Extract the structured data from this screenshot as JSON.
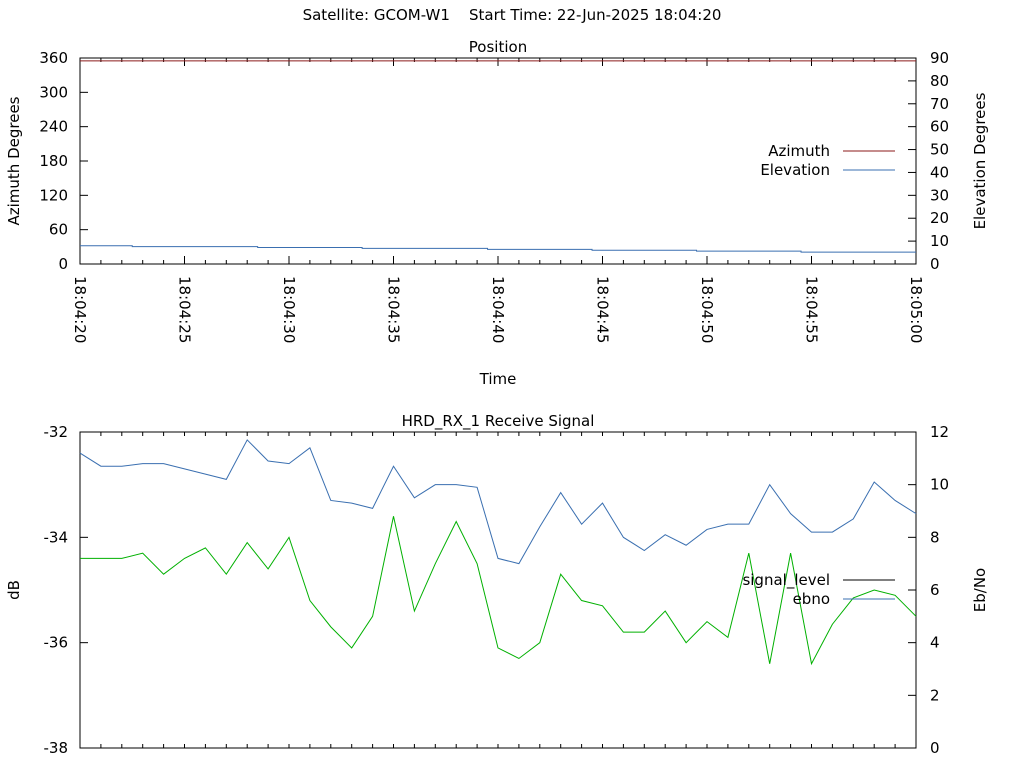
{
  "header": {
    "satellite_label": "Satellite: GCOM-W1",
    "start_time_label": "Start Time: 22-Jun-2025 18:04:20"
  },
  "colors": {
    "azimuth": "#8b1a1a",
    "elevation": "#3a6fb0",
    "signal_level": "#000000",
    "ebno_plot_line": "#00b000",
    "ebno_legend": "#3a6fb0"
  },
  "chart_data": [
    {
      "type": "line",
      "title": "Position",
      "xlabel": "Time",
      "ylabel": "Azimuth Degrees",
      "y2label": "Elevation Degrees",
      "xlim": [
        0,
        40
      ],
      "ylim": [
        0,
        360
      ],
      "y2lim": [
        0,
        90
      ],
      "x_ticks": [
        "18:04:20",
        "18:04:25",
        "18:04:30",
        "18:04:35",
        "18:04:40",
        "18:04:45",
        "18:04:50",
        "18:04:55",
        "18:05:00"
      ],
      "y_ticks": [
        0,
        60,
        120,
        180,
        240,
        300,
        360
      ],
      "y2_ticks": [
        0,
        10,
        20,
        30,
        40,
        50,
        60,
        70,
        80,
        90
      ],
      "legend_position": "right",
      "series": [
        {
          "name": "Azimuth",
          "axis": "y",
          "x": [
            0,
            40
          ],
          "values": [
            355,
            355
          ]
        },
        {
          "name": "Elevation",
          "axis": "y2",
          "x": [
            0,
            2.5,
            2.5,
            8.5,
            8.5,
            13.5,
            13.5,
            19.5,
            19.5,
            24.5,
            24.5,
            29.5,
            29.5,
            34.5,
            34.5,
            40
          ],
          "values": [
            8.0,
            8.0,
            7.6,
            7.6,
            7.2,
            7.2,
            6.8,
            6.8,
            6.4,
            6.4,
            6.0,
            6.0,
            5.6,
            5.6,
            5.2,
            5.2
          ]
        }
      ]
    },
    {
      "type": "line",
      "title": "HRD_RX_1 Receive Signal",
      "ylabel": "dB",
      "y2label": "Eb/No",
      "xlim": [
        0,
        40
      ],
      "ylim": [
        -38,
        -32
      ],
      "y2lim": [
        0,
        12
      ],
      "y_ticks": [
        -38,
        -36,
        -34,
        -32
      ],
      "y2_ticks": [
        0,
        2,
        4,
        6,
        8,
        10,
        12
      ],
      "legend_position": "right",
      "series": [
        {
          "name": "signal_level",
          "axis": "y",
          "x": [
            0,
            1,
            2,
            3,
            4,
            5,
            6,
            7,
            8,
            9,
            10,
            11,
            12,
            13,
            14,
            15,
            16,
            17,
            18,
            19,
            20,
            21,
            22,
            23,
            24,
            25,
            26,
            27,
            28,
            29,
            30,
            31,
            32,
            33,
            34,
            35,
            36,
            37,
            38,
            39,
            40
          ],
          "values": [
            -32.4,
            -32.65,
            -32.65,
            -32.6,
            -32.6,
            -32.7,
            -32.8,
            -32.9,
            -32.15,
            -32.55,
            -32.6,
            -32.3,
            -33.3,
            -33.35,
            -33.45,
            -32.65,
            -33.25,
            -33.0,
            -33.0,
            -33.05,
            -34.4,
            -34.5,
            -33.8,
            -33.15,
            -33.75,
            -33.35,
            -34.0,
            -34.25,
            -33.95,
            -34.15,
            -33.85,
            -33.75,
            -33.75,
            -33.0,
            -33.55,
            -33.9,
            -33.9,
            -33.65,
            -32.95,
            -33.3,
            -33.55
          ]
        },
        {
          "name": "ebno",
          "axis": "y2",
          "x": [
            0,
            1,
            2,
            3,
            4,
            5,
            6,
            7,
            8,
            9,
            10,
            11,
            12,
            13,
            14,
            15,
            16,
            17,
            18,
            19,
            20,
            21,
            22,
            23,
            24,
            25,
            26,
            27,
            28,
            29,
            30,
            31,
            32,
            33,
            34,
            35,
            36,
            37,
            38,
            39,
            40
          ],
          "values": [
            7.2,
            7.2,
            7.2,
            7.4,
            6.6,
            7.2,
            7.6,
            6.6,
            7.8,
            6.8,
            8.0,
            5.6,
            4.6,
            3.8,
            5.0,
            8.8,
            5.2,
            7.0,
            8.6,
            7.0,
            3.8,
            3.4,
            4.0,
            6.6,
            5.6,
            5.4,
            4.4,
            4.4,
            5.2,
            4.0,
            4.8,
            4.2,
            7.4,
            3.2,
            7.4,
            3.2,
            4.7,
            5.7,
            6.0,
            5.8,
            5.0
          ]
        }
      ]
    }
  ]
}
